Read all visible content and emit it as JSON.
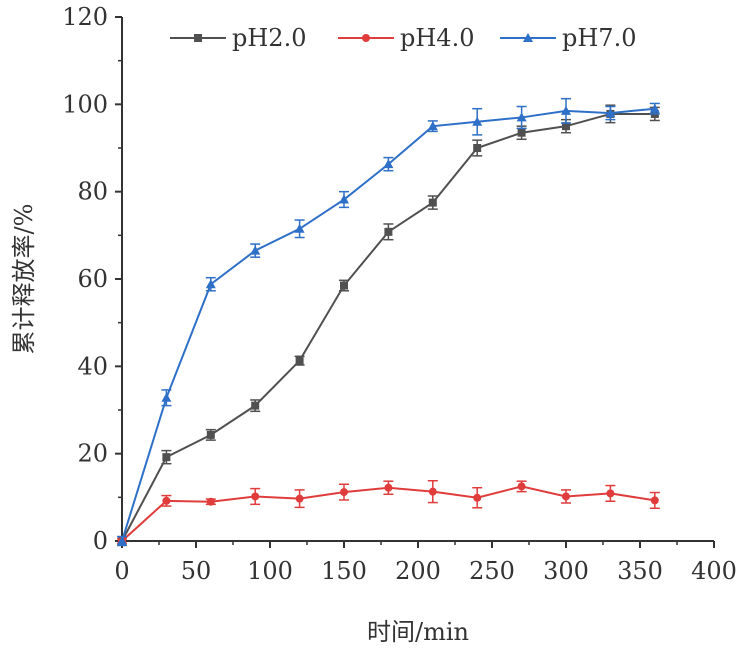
{
  "chart_data": {
    "type": "line",
    "xlabel": "时间/min",
    "ylabel": "累计释放率/%",
    "xlim": [
      0,
      400
    ],
    "ylim": [
      0,
      120
    ],
    "xticks": [
      0,
      50,
      100,
      150,
      200,
      250,
      300,
      350,
      400
    ],
    "yticks": [
      0,
      20,
      40,
      60,
      80,
      100,
      120
    ],
    "grid": false,
    "legend_position": "top",
    "x": [
      0,
      30,
      60,
      90,
      120,
      150,
      180,
      210,
      240,
      270,
      300,
      330,
      360
    ],
    "series": [
      {
        "name": "pH2.0",
        "color": "#505050",
        "marker": "square",
        "values": [
          0,
          19.2,
          24.3,
          31.0,
          41.3,
          58.5,
          70.8,
          77.5,
          90.0,
          93.5,
          95.0,
          97.8,
          97.8
        ],
        "errors": [
          1,
          1.5,
          1.2,
          1.3,
          1.0,
          1.2,
          1.8,
          1.5,
          1.8,
          1.5,
          1.5,
          2.0,
          1.5
        ]
      },
      {
        "name": "pH4.0",
        "color": "#e03c3c",
        "marker": "circle",
        "values": [
          0,
          9.2,
          9.0,
          10.2,
          9.7,
          11.2,
          12.2,
          11.3,
          9.9,
          12.5,
          10.2,
          10.9,
          9.3
        ],
        "errors": [
          0.5,
          1.2,
          0.6,
          1.8,
          2.0,
          1.8,
          1.5,
          2.5,
          2.3,
          1.2,
          1.5,
          1.8,
          1.8
        ]
      },
      {
        "name": "pH7.0",
        "color": "#2e6fc7",
        "marker": "triangle",
        "values": [
          0,
          32.8,
          58.8,
          66.5,
          71.5,
          78.2,
          86.3,
          95.0,
          96.0,
          97.0,
          98.5,
          98.0,
          99.0
        ],
        "errors": [
          1,
          1.8,
          1.5,
          1.5,
          2.0,
          1.8,
          1.5,
          1.2,
          3.0,
          2.5,
          2.8,
          1.5,
          1.2
        ]
      }
    ]
  }
}
